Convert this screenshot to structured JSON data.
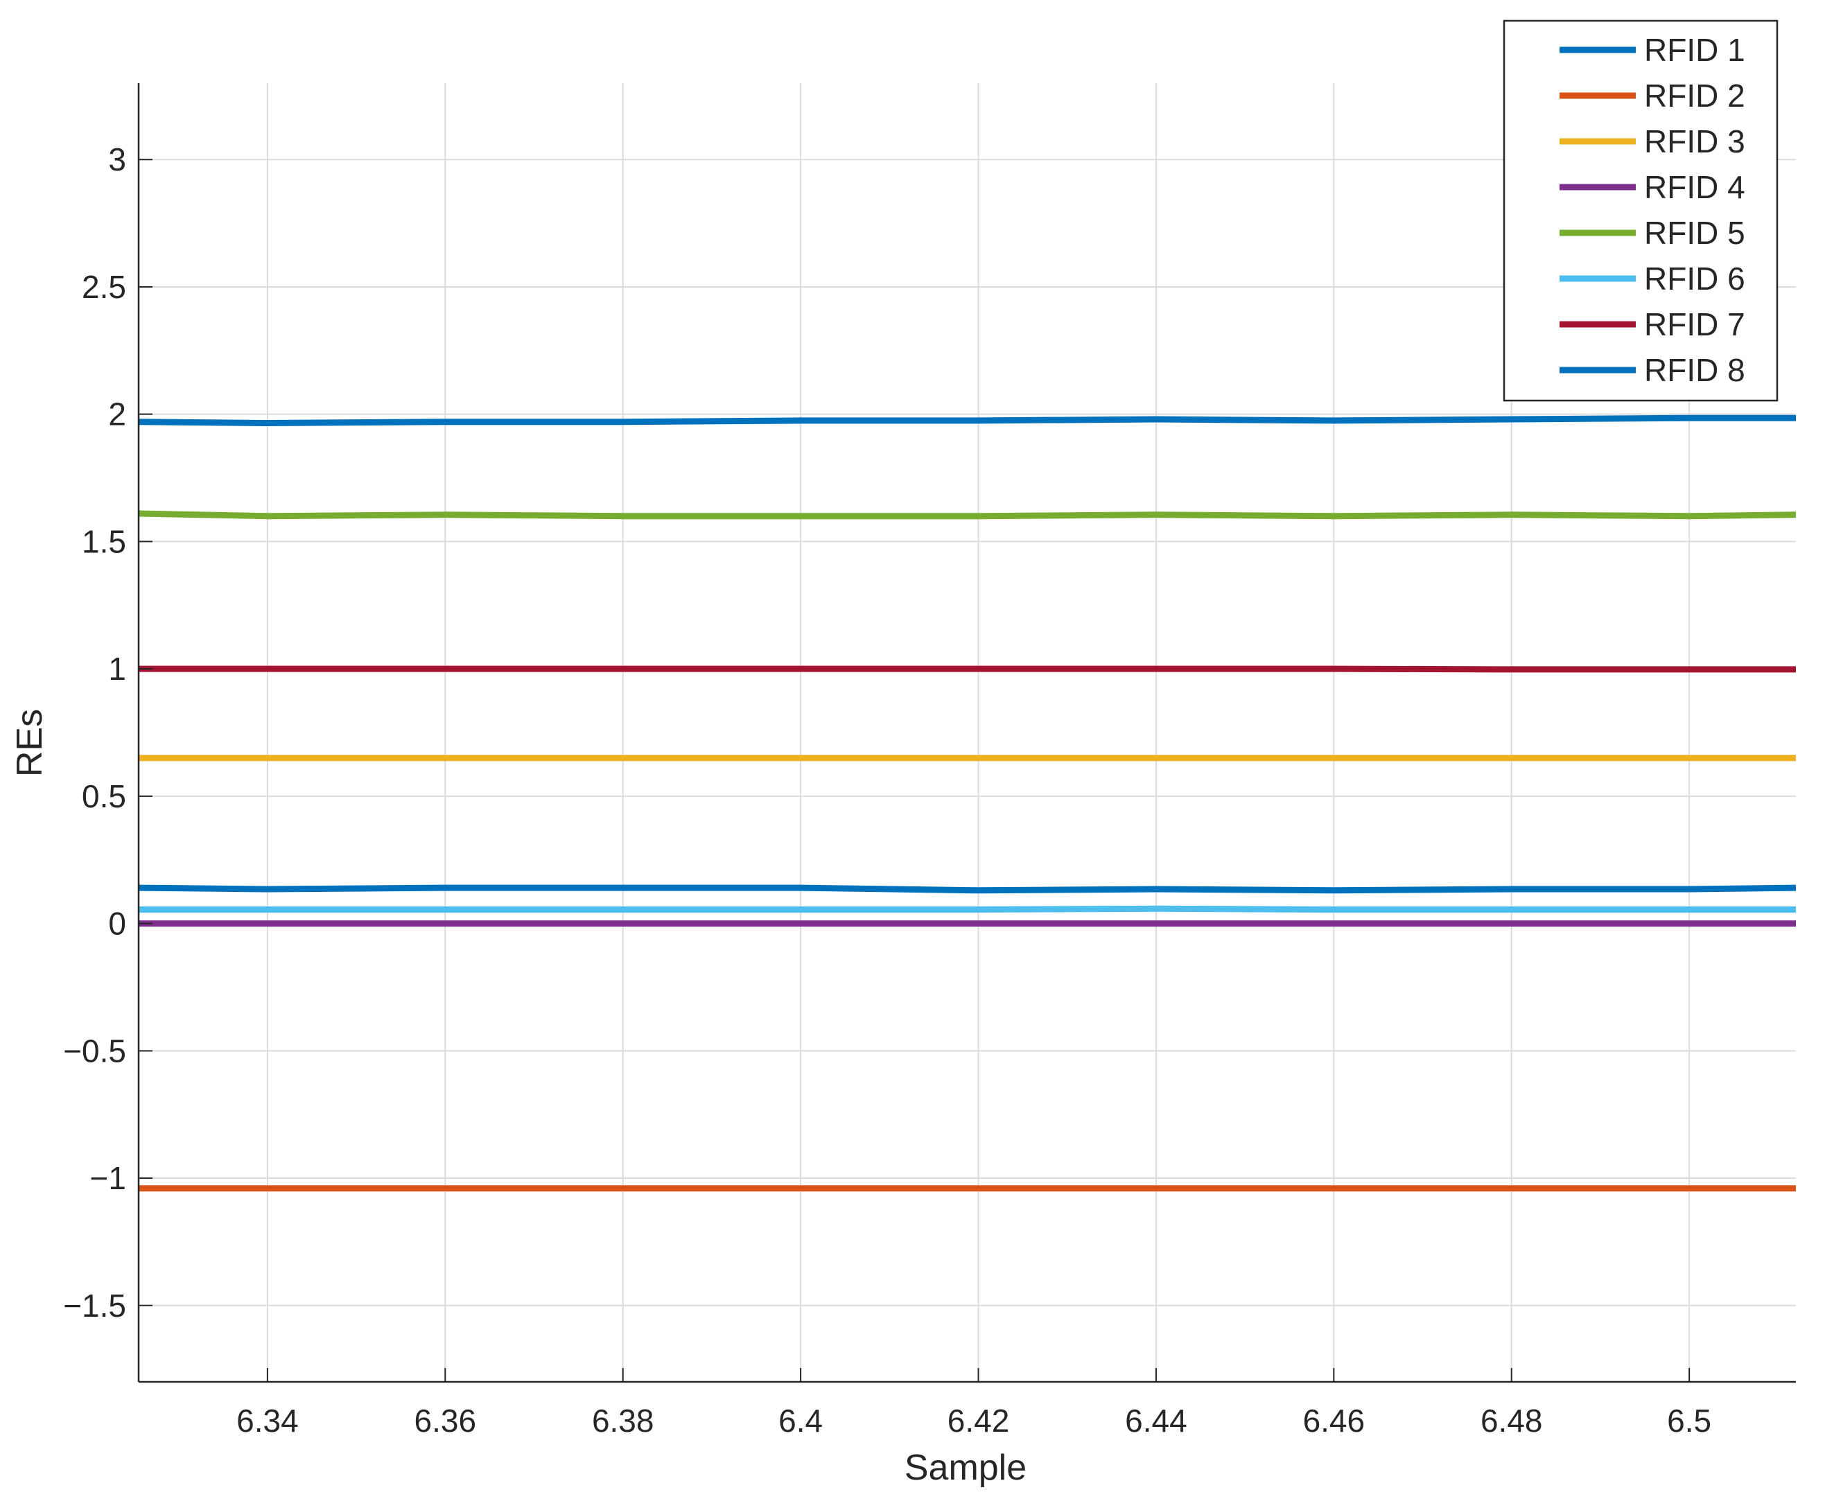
{
  "chart_data": {
    "type": "line",
    "title": "",
    "xlabel": "Sample",
    "ylabel": "REs",
    "xlim": [
      6.3255,
      6.512
    ],
    "ylim": [
      -1.8,
      3.3
    ],
    "x_ticks": [
      6.34,
      6.36,
      6.38,
      6.4,
      6.42,
      6.44,
      6.46,
      6.48,
      6.5
    ],
    "x_tick_labels": [
      "6.34",
      "6.36",
      "6.38",
      "6.4",
      "6.42",
      "6.44",
      "6.46",
      "6.48",
      "6.5"
    ],
    "y_ticks": [
      -1.5,
      -1,
      -0.5,
      0,
      0.5,
      1,
      1.5,
      2,
      2.5,
      3
    ],
    "y_tick_labels": [
      "−1.5",
      "−1",
      "−0.5",
      "0",
      "0.5",
      "1",
      "1.5",
      "2",
      "2.5",
      "3"
    ],
    "grid": true,
    "legend_position": "top-right",
    "x": [
      6.3255,
      6.34,
      6.36,
      6.38,
      6.4,
      6.42,
      6.44,
      6.46,
      6.48,
      6.5,
      6.512
    ],
    "series": [
      {
        "name": "RFID 1",
        "color": "#0072BD",
        "values": [
          0.14,
          0.135,
          0.14,
          0.14,
          0.14,
          0.13,
          0.135,
          0.13,
          0.135,
          0.135,
          0.14
        ]
      },
      {
        "name": "RFID 2",
        "color": "#D95319",
        "values": [
          -1.04,
          -1.04,
          -1.04,
          -1.04,
          -1.04,
          -1.04,
          -1.04,
          -1.04,
          -1.04,
          -1.04,
          -1.04
        ]
      },
      {
        "name": "RFID 3",
        "color": "#EDB120",
        "values": [
          0.65,
          0.65,
          0.65,
          0.65,
          0.65,
          0.65,
          0.65,
          0.65,
          0.65,
          0.65,
          0.65
        ]
      },
      {
        "name": "RFID 4",
        "color": "#7E2F8E",
        "values": [
          0.0,
          0.0,
          0.0,
          0.0,
          0.0,
          0.0,
          0.0,
          0.0,
          0.0,
          0.0,
          0.0
        ]
      },
      {
        "name": "RFID 5",
        "color": "#77AC30",
        "values": [
          1.61,
          1.6,
          1.605,
          1.6,
          1.6,
          1.6,
          1.605,
          1.6,
          1.605,
          1.6,
          1.605
        ]
      },
      {
        "name": "RFID 6",
        "color": "#4DBEEE",
        "values": [
          0.055,
          0.055,
          0.055,
          0.055,
          0.055,
          0.055,
          0.058,
          0.055,
          0.055,
          0.055,
          0.055
        ]
      },
      {
        "name": "RFID 7",
        "color": "#A2142F",
        "values": [
          1.0,
          1.0,
          1.0,
          1.0,
          1.0,
          1.0,
          1.0,
          1.0,
          0.998,
          0.998,
          0.998
        ]
      },
      {
        "name": "RFID 8",
        "color": "#0072BD",
        "values": [
          1.97,
          1.965,
          1.97,
          1.97,
          1.975,
          1.975,
          1.98,
          1.975,
          1.98,
          1.985,
          1.985
        ]
      }
    ]
  }
}
